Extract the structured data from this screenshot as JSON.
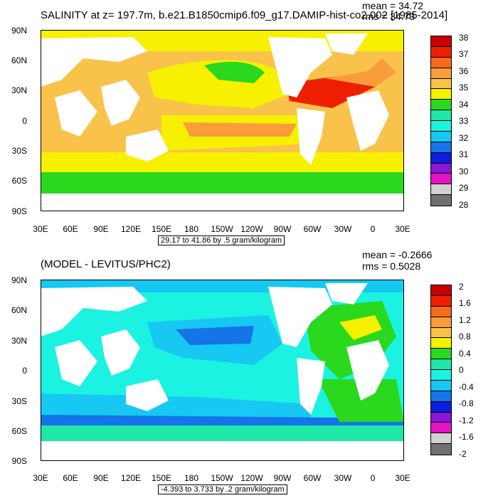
{
  "panel1": {
    "title": "SALINITY at z= 197.7m, b.e21.B1850cmip6.f09_g17.DAMIP-hist-co2.002 [1985-2014]",
    "mean": "mean = 34.72",
    "rms": "rms = 34.73",
    "range_label": "29.17 to 41.86 by .5 gram/kilogram",
    "lat_labels": [
      "90N",
      "60N",
      "30N",
      "0",
      "30S",
      "60S",
      "90S"
    ],
    "lon_labels": [
      "30E",
      "60E",
      "90E",
      "120E",
      "150E",
      "180",
      "150W",
      "120W",
      "90W",
      "60W",
      "30W",
      "0",
      "30E"
    ],
    "colorbar_labels": [
      "38",
      "37",
      "36",
      "35",
      "34",
      "33",
      "32",
      "31",
      "30",
      "29",
      "28"
    ],
    "colorbar_colors": [
      "#c40000",
      "#ee1f00",
      "#f76a1c",
      "#f99d3c",
      "#f9c24a",
      "#f7f000",
      "#2ad81e",
      "#1ee7a7",
      "#1cf2e2",
      "#16c8f2",
      "#1474e8",
      "#0c1ee2",
      "#8a16d6",
      "#e612c8",
      "#d2d2d2",
      "#707070"
    ]
  },
  "panel2": {
    "title": "(MODEL - LEVITUS/PHC2)",
    "mean": "mean = -0.2666",
    "rms": "rms = 0.5028",
    "range_label": "-4.393 to 3.733 by .2 gram/kilogram",
    "lat_labels": [
      "90N",
      "60N",
      "30N",
      "0",
      "30S",
      "60S",
      "90S"
    ],
    "lon_labels": [
      "30E",
      "60E",
      "90E",
      "120E",
      "150E",
      "180",
      "150W",
      "120W",
      "90W",
      "60W",
      "30W",
      "0",
      "30E"
    ],
    "colorbar_labels": [
      "2",
      "1.6",
      "1.2",
      "0.8",
      "0.4",
      "0",
      "-0.4",
      "-0.8",
      "-1.2",
      "-1.6",
      "-2"
    ],
    "colorbar_colors": [
      "#c40000",
      "#ee1f00",
      "#f76a1c",
      "#f99d3c",
      "#f9c24a",
      "#f7f000",
      "#2ad81e",
      "#1ee7a7",
      "#1cf2e2",
      "#16c8f2",
      "#1474e8",
      "#0c1ee2",
      "#8a16d6",
      "#e612c8",
      "#d2d2d2",
      "#707070"
    ]
  },
  "colors": {
    "ocean_yellow": "#f7f000",
    "ocean_orange": "#f9c24a",
    "ocean_dark_orange": "#f99d3c",
    "ocean_green": "#2ad81e",
    "ocean_red": "#ee1f00",
    "ocean_teal": "#1ee7a7",
    "ocean_cyan": "#1cf2e2",
    "ocean_lightblue": "#16c8f2",
    "ocean_blue": "#1474e8",
    "land": "#ffffff"
  }
}
